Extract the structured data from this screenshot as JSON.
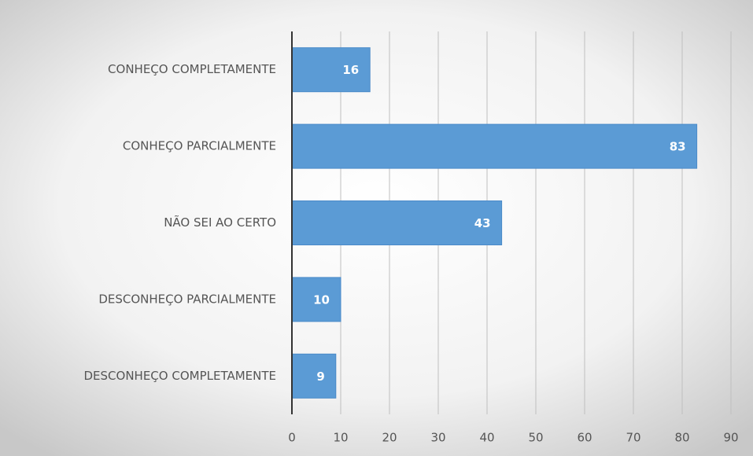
{
  "chart_data": {
    "type": "bar",
    "orientation": "horizontal",
    "categories": [
      "CONHEÇO COMPLETAMENTE",
      "CONHEÇO PARCIALMENTE",
      "NÃO SEI AO CERTO",
      "DESCONHEÇO PARCIALMENTE",
      "DESCONHEÇO COMPLETAMENTE"
    ],
    "values": [
      16,
      83,
      43,
      10,
      9
    ],
    "color": "#5b9bd5",
    "xlim": [
      0,
      90
    ],
    "xticks": [
      0,
      10,
      20,
      30,
      40,
      50,
      60,
      70,
      80,
      90
    ],
    "grid": true
  }
}
